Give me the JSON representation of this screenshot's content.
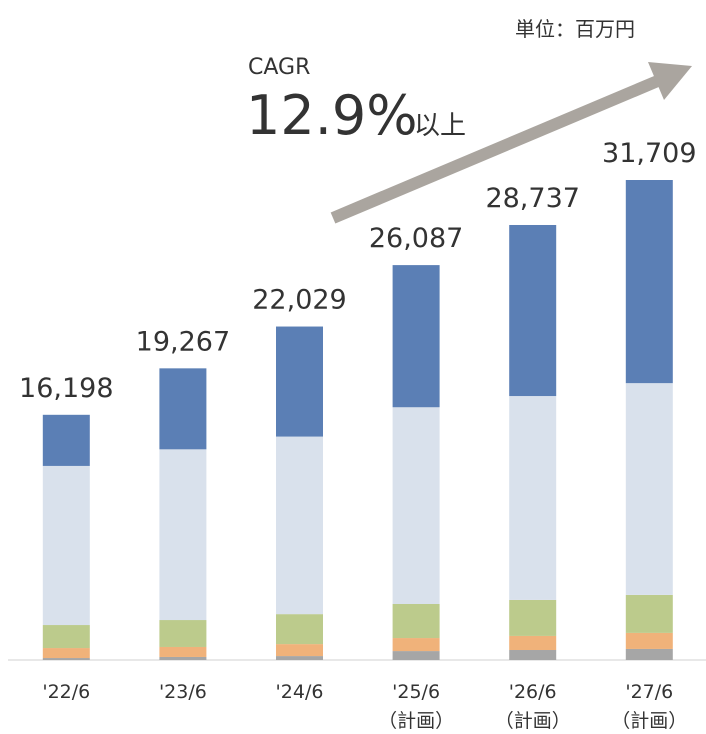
{
  "chart_data": {
    "type": "stacked_bar",
    "unit_label": "単位：百万円",
    "annotation": {
      "label": "CAGR",
      "rate": "12.9%",
      "suffix": "以上"
    },
    "categories": [
      "'22/6",
      "'23/6",
      "'24/6",
      "'25/6",
      "'26/6",
      "'27/6"
    ],
    "category_notes": [
      null,
      null,
      null,
      "（計画）",
      "（計画）",
      "（計画）"
    ],
    "series": [
      {
        "color": "#a6a6a6",
        "values": [
          130,
          200,
          260,
          590,
          660,
          730
        ]
      },
      {
        "color": "#f0b27a",
        "values": [
          660,
          660,
          790,
          860,
          930,
          1060
        ]
      },
      {
        "color": "#bccb8c",
        "values": [
          1520,
          1780,
          1980,
          2250,
          2380,
          2510
        ]
      },
      {
        "color": "#d9e1ec",
        "values": [
          10510,
          11277,
          11729,
          12997,
          13467,
          13989
        ]
      },
      {
        "color": "#5b7fb5",
        "values": [
          3378,
          5350,
          7270,
          9390,
          11300,
          13420
        ]
      }
    ],
    "totals": {
      "values": [
        16198,
        19267,
        22029,
        26087,
        28737,
        31709
      ],
      "value_labels": [
        "16,198",
        "19,267",
        "22,029",
        "26,087",
        "28,737",
        "31,709"
      ]
    },
    "ylim": [
      0,
      43600
    ]
  }
}
